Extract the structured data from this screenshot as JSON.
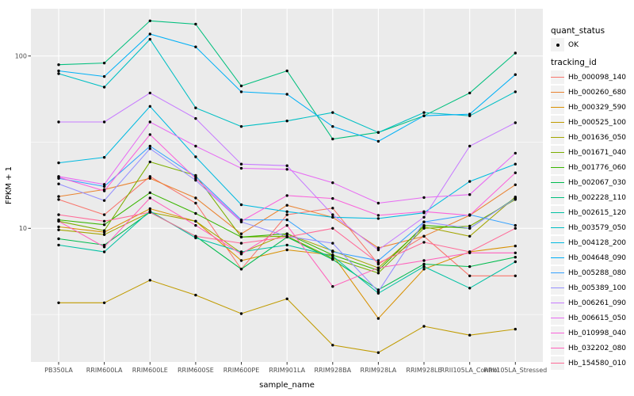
{
  "chart_data": {
    "type": "line",
    "title": "",
    "xlabel": "sample_name",
    "ylabel": "FPKM + 1",
    "y_scale": "log10",
    "y_ticks": [
      100,
      10
    ],
    "y_tick_labels": [
      "100",
      "10"
    ],
    "y_minor_ticks": [
      31.6,
      3.16
    ],
    "ylim": [
      1.68,
      188
    ],
    "grid": true,
    "legend_position": "right",
    "x_categories": [
      "PB350LA",
      "RRIM600LA",
      "RRIM600LE",
      "RRIM600SE",
      "RRIM600PE",
      "RRIM901LA",
      "RRIM928BA",
      "RRIM928LA",
      "RRIM928LE",
      "RRII105LA_Control",
      "RRII105LA_Stressed"
    ],
    "series": [
      {
        "tracking_id": "Hb_000098_140",
        "color": "#F8766D",
        "values": [
          14.7,
          12.0,
          20.0,
          14.0,
          5.8,
          12.0,
          13.1,
          6.2,
          9.0,
          5.3,
          5.3
        ]
      },
      {
        "tracking_id": "Hb_000260_680",
        "color": "#EA8331",
        "values": [
          15.3,
          16.8,
          19.5,
          15.0,
          9.3,
          13.6,
          11.6,
          7.7,
          9.0,
          11.9,
          17.9
        ]
      },
      {
        "tracking_id": "Hb_000329_590",
        "color": "#D89000",
        "values": [
          10.2,
          9.5,
          13.0,
          11.0,
          6.5,
          7.5,
          7.0,
          3.0,
          5.8,
          7.3,
          7.9
        ]
      },
      {
        "tracking_id": "Hb_000525_100",
        "color": "#C09B00",
        "values": [
          3.7,
          3.7,
          5.0,
          4.1,
          3.2,
          3.9,
          2.1,
          1.9,
          2.7,
          2.4,
          2.6
        ]
      },
      {
        "tracking_id": "Hb_001636_050",
        "color": "#A3A500",
        "values": [
          9.8,
          9.2,
          12.4,
          11.0,
          7.2,
          9.3,
          7.4,
          5.9,
          10.2,
          9.0,
          15.2
        ]
      },
      {
        "tracking_id": "Hb_001671_040",
        "color": "#7CAE00",
        "values": [
          11.0,
          9.7,
          24.3,
          20.3,
          8.9,
          9.0,
          6.7,
          5.5,
          10.0,
          10.3,
          14.7
        ]
      },
      {
        "tracking_id": "Hb_001776_060",
        "color": "#39B600",
        "values": [
          11.2,
          10.5,
          16.1,
          12.2,
          8.9,
          9.3,
          7.0,
          5.7,
          10.4,
          10.0,
          15.0
        ]
      },
      {
        "tracking_id": "Hb_002067_030",
        "color": "#00BB4E",
        "values": [
          8.7,
          8.0,
          12.4,
          9.0,
          5.8,
          8.9,
          6.6,
          4.4,
          6.2,
          6.0,
          6.8
        ]
      },
      {
        "tracking_id": "Hb_002228_110",
        "color": "#00BF7D",
        "values": [
          89,
          91,
          160,
          153,
          67,
          82,
          33,
          36,
          45,
          61,
          104
        ]
      },
      {
        "tracking_id": "Hb_002615_120",
        "color": "#00C1A3",
        "values": [
          8.0,
          7.3,
          12.6,
          8.8,
          7.3,
          8.0,
          6.9,
          4.2,
          6.0,
          4.5,
          6.4
        ]
      },
      {
        "tracking_id": "Hb_003579_050",
        "color": "#00BFC4",
        "values": [
          79,
          66,
          125,
          50,
          39,
          42,
          47,
          36,
          47,
          45,
          62
        ]
      },
      {
        "tracking_id": "Hb_004128_200",
        "color": "#00BAE0",
        "values": [
          24.0,
          25.8,
          51,
          26,
          13.7,
          12.5,
          11.6,
          11.4,
          12.3,
          18.7,
          23.6
        ]
      },
      {
        "tracking_id": "Hb_004648_090",
        "color": "#00B0F6",
        "values": [
          82,
          76,
          134,
          113,
          62,
          60,
          39,
          32,
          45,
          46,
          78
        ]
      },
      {
        "tracking_id": "Hb_005288_080",
        "color": "#35A2FF",
        "values": [
          19.5,
          17.5,
          30,
          20,
          11.2,
          11.2,
          7.3,
          6.5,
          10.9,
          12.0,
          10.4
        ]
      },
      {
        "tracking_id": "Hb_005389_100",
        "color": "#9590FF",
        "values": [
          18.1,
          14.5,
          29.0,
          19.0,
          10.9,
          9.0,
          8.2,
          4.3,
          10.9,
          10.0,
          14.9
        ]
      },
      {
        "tracking_id": "Hb_006261_090",
        "color": "#C77CFF",
        "values": [
          41.4,
          41.4,
          61,
          43.4,
          23.6,
          23.1,
          12.0,
          7.5,
          11.6,
          30,
          41
        ]
      },
      {
        "tracking_id": "Hb_006615_050",
        "color": "#E76BF3",
        "values": [
          20.0,
          18.0,
          41.4,
          30.0,
          22.3,
          22.0,
          18.4,
          14.0,
          15.1,
          15.7,
          27.3
        ]
      },
      {
        "tracking_id": "Hb_010998_040",
        "color": "#FA62DB",
        "values": [
          19.8,
          16.5,
          35.0,
          19.5,
          11.0,
          15.5,
          14.9,
          11.9,
          12.5,
          11.9,
          21.0
        ]
      },
      {
        "tracking_id": "Hb_032202_080",
        "color": "#FF62BC",
        "values": [
          11.0,
          7.8,
          15.0,
          10.4,
          7.1,
          10.4,
          4.6,
          5.9,
          6.5,
          7.2,
          7.2
        ]
      },
      {
        "tracking_id": "Hb_154580_010",
        "color": "#FF6A98",
        "values": [
          12.0,
          11.0,
          12.4,
          9.0,
          8.2,
          8.9,
          10.0,
          6.3,
          8.3,
          7.3,
          10.0
        ]
      }
    ]
  },
  "legend": {
    "quant_status_title": "quant_status",
    "quant_status_items": [
      {
        "label": "OK",
        "marker": "point"
      }
    ],
    "tracking_id_title": "tracking_id"
  },
  "colors": {
    "panel_background": "#EBEBEB",
    "grid_major": "#FFFFFF",
    "grid_minor": "#FFFFFF",
    "tick_mark": "#333333",
    "tick_text": "#4d4d4d",
    "axis_title": "#000000",
    "figure_background": "#FFFFFF",
    "point": "#000000",
    "legend_key_background": "#F2F2F2"
  }
}
